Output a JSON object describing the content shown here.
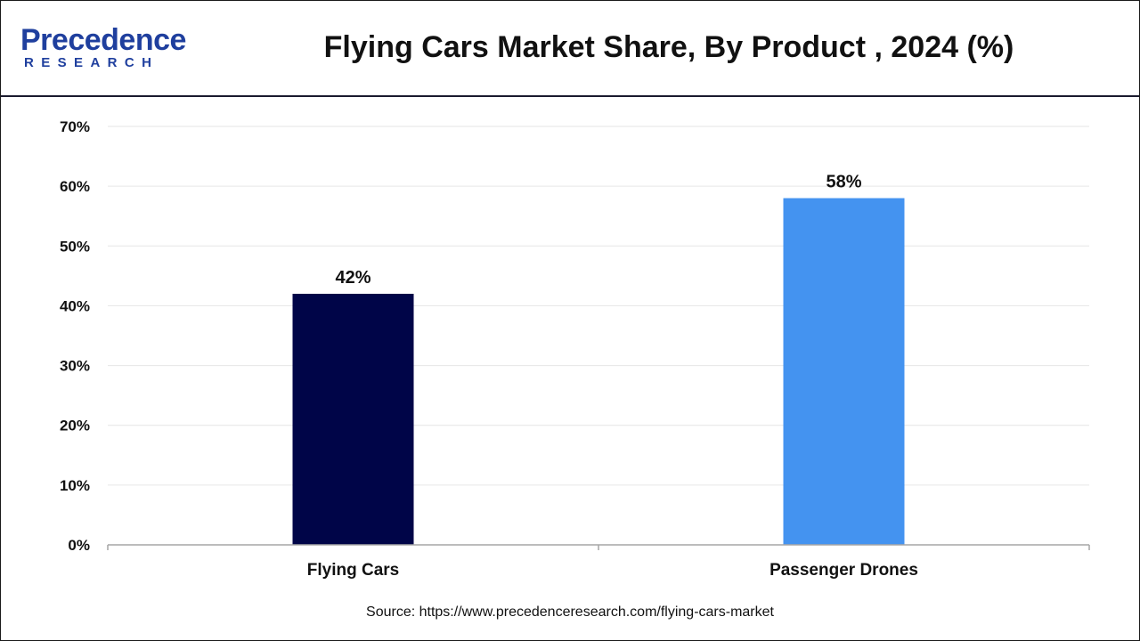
{
  "header": {
    "logo_word": "Precedence",
    "logo_sub": "RESEARCH",
    "title": "Flying Cars Market Share, By Product , 2024 (%)"
  },
  "footer": {
    "source": "Source: https://www.precedenceresearch.com/flying-cars-market"
  },
  "colors": {
    "brand": "#1f3f9e",
    "series": [
      "#000548",
      "#4493f0"
    ]
  },
  "chart_data": {
    "type": "bar",
    "title": "Flying Cars Market Share, By Product , 2024 (%)",
    "categories": [
      "Flying Cars",
      "Passenger Drones"
    ],
    "values": [
      42,
      58
    ],
    "value_labels": [
      "42%",
      "58%"
    ],
    "yticks": [
      "0%",
      "10%",
      "20%",
      "30%",
      "40%",
      "50%",
      "60%",
      "70%"
    ],
    "ylim": [
      0,
      70
    ],
    "grid": true,
    "xlabel": "",
    "ylabel": ""
  }
}
